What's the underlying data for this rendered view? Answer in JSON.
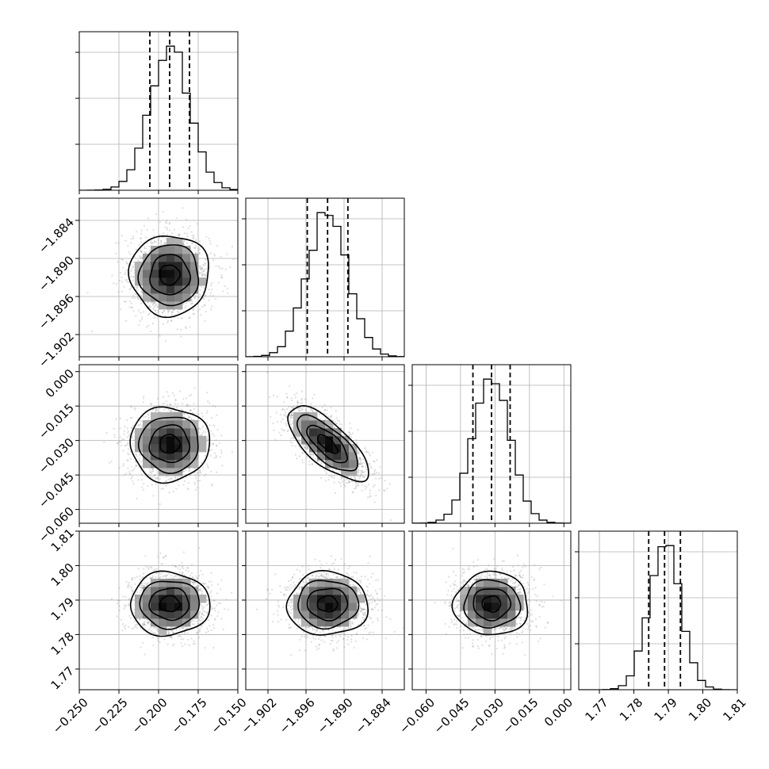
{
  "chart_data": {
    "type": "corner",
    "title": "",
    "parameters": [
      {
        "index": 0,
        "range": [
          -0.25,
          -0.15
        ],
        "ticks": [
          -0.25,
          -0.225,
          -0.2,
          -0.175,
          -0.15
        ],
        "tick_labels": [
          "−0.250",
          "−0.225",
          "−0.200",
          "−0.175",
          "−0.150"
        ],
        "median": -0.193,
        "std": 0.0125,
        "quantiles_16_50_84": [
          -0.2055,
          -0.193,
          -0.1805
        ]
      },
      {
        "index": 1,
        "range": [
          -1.9055,
          -1.8805
        ],
        "ticks": [
          -1.902,
          -1.896,
          -1.89,
          -1.884
        ],
        "tick_labels": [
          "−1.902",
          "−1.896",
          "−1.890",
          "−1.884"
        ],
        "median": -1.8926,
        "std": 0.00318,
        "quantiles_16_50_84": [
          -1.8958,
          -1.8926,
          -1.8894
        ]
      },
      {
        "index": 2,
        "range": [
          -0.066,
          0.003
        ],
        "ticks": [
          -0.06,
          -0.045,
          -0.03,
          -0.015,
          0.0
        ],
        "tick_labels": [
          "−0.060",
          "−0.045",
          "−0.030",
          "−0.015",
          "0.000"
        ],
        "median": -0.0315,
        "std": 0.0081,
        "quantiles_16_50_84": [
          -0.0396,
          -0.0315,
          -0.0234
        ]
      },
      {
        "index": 3,
        "range": [
          1.764,
          1.81
        ],
        "ticks": [
          1.77,
          1.78,
          1.79,
          1.8,
          1.81
        ],
        "tick_labels": [
          "1.77",
          "1.78",
          "1.79",
          "1.80",
          "1.81"
        ],
        "median": 1.7889,
        "std": 0.0046,
        "quantiles_16_50_84": [
          1.7843,
          1.7889,
          1.7935
        ]
      }
    ],
    "correlations": [
      {
        "pair": [
          0,
          1
        ],
        "rho": 0.0
      },
      {
        "pair": [
          0,
          2
        ],
        "rho": 0.0
      },
      {
        "pair": [
          1,
          2
        ],
        "rho": -0.72
      },
      {
        "pair": [
          0,
          3
        ],
        "rho": 0.0
      },
      {
        "pair": [
          1,
          3
        ],
        "rho": 0.0
      },
      {
        "pair": [
          2,
          3
        ],
        "rho": 0.0
      }
    ],
    "histogram_bins": 20,
    "contour_levels_sigma": [
      0.5,
      1.0,
      1.5,
      2.0
    ],
    "grid": true,
    "axis_labels": [
      "",
      "",
      "",
      ""
    ]
  }
}
